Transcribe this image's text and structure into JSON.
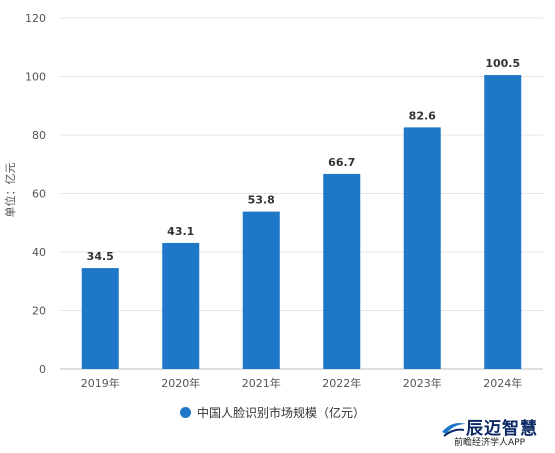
{
  "chart_data": {
    "type": "bar",
    "categories": [
      "2019年",
      "2020年",
      "2021年",
      "2022年",
      "2023年",
      "2024年"
    ],
    "series": [
      {
        "name": "中国人脸识别市场规模（亿元）",
        "values": [
          34.5,
          43.1,
          53.8,
          66.7,
          82.6,
          100.5
        ],
        "color": "#1f77c8"
      }
    ],
    "data_labels": [
      "34.5",
      "43.1",
      "53.8",
      "66.7",
      "82.6",
      "100.5"
    ],
    "ylabel": "单位：亿元",
    "ylim": [
      0,
      120
    ],
    "yticks": [
      0,
      20,
      40,
      60,
      80,
      100,
      120
    ],
    "grid": true,
    "legend_position": "bottom"
  },
  "branding": {
    "logo_name": "辰迈智慧",
    "logo_url": "前瞻经济学人APP"
  },
  "colors": {
    "bar": "#1f77c8",
    "grid": "#e6e6e6"
  }
}
